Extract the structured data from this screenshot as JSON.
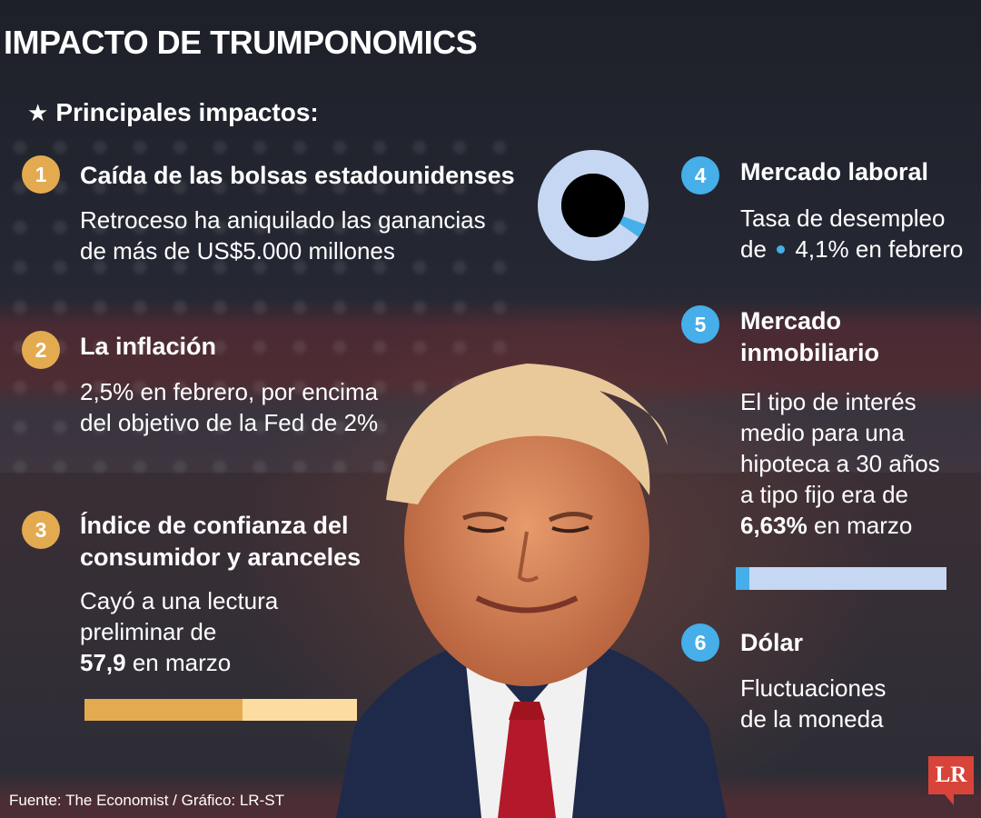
{
  "title": "IMPACTO DE TRUMPONOMICS",
  "subtitle": {
    "icon": "star-icon",
    "text": "Principales impactos:"
  },
  "items": [
    {
      "num": "1",
      "head": "Caída de las bolsas estadounidenses",
      "body": [
        "Retroceso ha aniquilado las ganancias",
        "de más de US$5.000 millones"
      ]
    },
    {
      "num": "2",
      "head": "La inflación",
      "body": [
        "2,5% en febrero, por encima",
        "del objetivo de la Fed de 2%"
      ]
    },
    {
      "num": "3",
      "head": [
        "Índice de confianza del",
        "consumidor y aranceles"
      ],
      "body": [
        "Cayó a una lectura",
        "preliminar de"
      ],
      "body_bold": "57,9",
      "body_tail": " en marzo",
      "bar_fraction": 0.579
    },
    {
      "num": "4",
      "head": "Mercado laboral",
      "body_line1": "Tasa de desempleo",
      "body_pre": "de ",
      "body_post": " 4,1% en febrero",
      "donut_fraction": 0.041
    },
    {
      "num": "5",
      "head": [
        "Mercado",
        "inmobiliario"
      ],
      "body": [
        "El tipo de interés",
        "medio para una",
        "hipoteca a 30 años",
        "a tipo fijo era de"
      ],
      "body_bold": "6,63%",
      "body_tail": " en marzo",
      "bar_fraction": 0.0663
    },
    {
      "num": "6",
      "head": "Dólar",
      "body": [
        "Fluctuaciones",
        "de la moneda"
      ]
    }
  ],
  "colors": {
    "gold": "#e3aa4f",
    "gold_light": "#fddca2",
    "blue": "#46aee8",
    "blue_light": "#c5d7f2"
  },
  "footer": "Fuente: The Economist / Gráfico: LR-ST",
  "logo": "LR"
}
